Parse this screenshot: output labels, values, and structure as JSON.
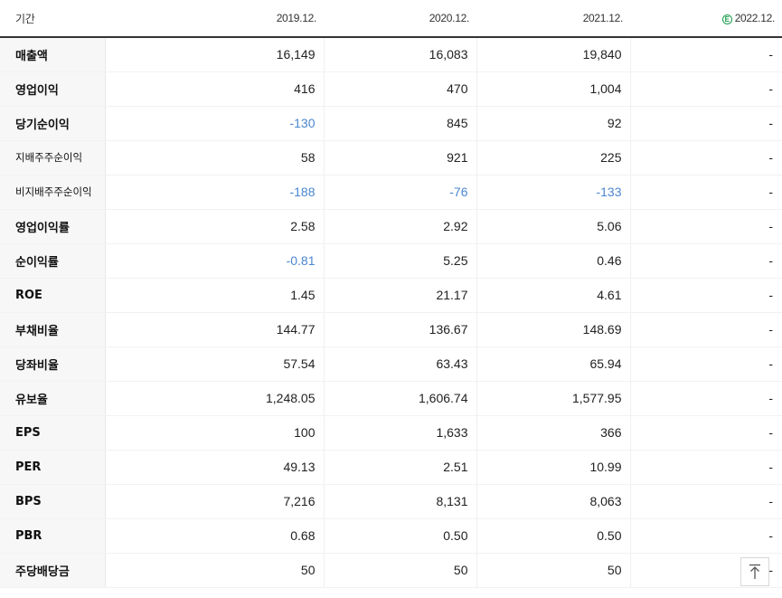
{
  "header": {
    "label": "기간",
    "periods": [
      "2019.12.",
      "2020.12.",
      "2021.12.",
      "2022.12."
    ],
    "estimate_icon": "e-circle-icon",
    "estimate_icon_text": "E"
  },
  "rows": [
    {
      "label": "매출액",
      "values": [
        "16,149",
        "16,083",
        "19,840",
        "-"
      ]
    },
    {
      "label": "영업이익",
      "values": [
        "416",
        "470",
        "1,004",
        "-"
      ]
    },
    {
      "label": "당기순이익",
      "values": [
        "-130",
        "845",
        "92",
        "-"
      ]
    },
    {
      "label": "지배주주순이익",
      "values": [
        "58",
        "921",
        "225",
        "-"
      ]
    },
    {
      "label": "비지배주주순이익",
      "values": [
        "-188",
        "-76",
        "-133",
        "-"
      ]
    },
    {
      "label": "영업이익률",
      "values": [
        "2.58",
        "2.92",
        "5.06",
        "-"
      ]
    },
    {
      "label": "순이익률",
      "values": [
        "-0.81",
        "5.25",
        "0.46",
        "-"
      ]
    },
    {
      "label": "ROE",
      "values": [
        "1.45",
        "21.17",
        "4.61",
        "-"
      ]
    },
    {
      "label": "부채비율",
      "values": [
        "144.77",
        "136.67",
        "148.69",
        "-"
      ]
    },
    {
      "label": "당좌비율",
      "values": [
        "57.54",
        "63.43",
        "65.94",
        "-"
      ]
    },
    {
      "label": "유보율",
      "values": [
        "1,248.05",
        "1,606.74",
        "1,577.95",
        "-"
      ]
    },
    {
      "label": "EPS",
      "values": [
        "100",
        "1,633",
        "366",
        "-"
      ]
    },
    {
      "label": "PER",
      "values": [
        "49.13",
        "2.51",
        "10.99",
        "-"
      ]
    },
    {
      "label": "BPS",
      "values": [
        "7,216",
        "8,131",
        "8,063",
        "-"
      ]
    },
    {
      "label": "PBR",
      "values": [
        "0.68",
        "0.50",
        "0.50",
        "-"
      ]
    },
    {
      "label": "주당배당금",
      "values": [
        "50",
        "50",
        "50",
        "-"
      ]
    }
  ],
  "colors": {
    "negative": "#4a86d0",
    "estimate_icon": "#1a9b4b"
  },
  "scroll_top_button": {
    "icon": "arrow-up-to-top-icon"
  }
}
